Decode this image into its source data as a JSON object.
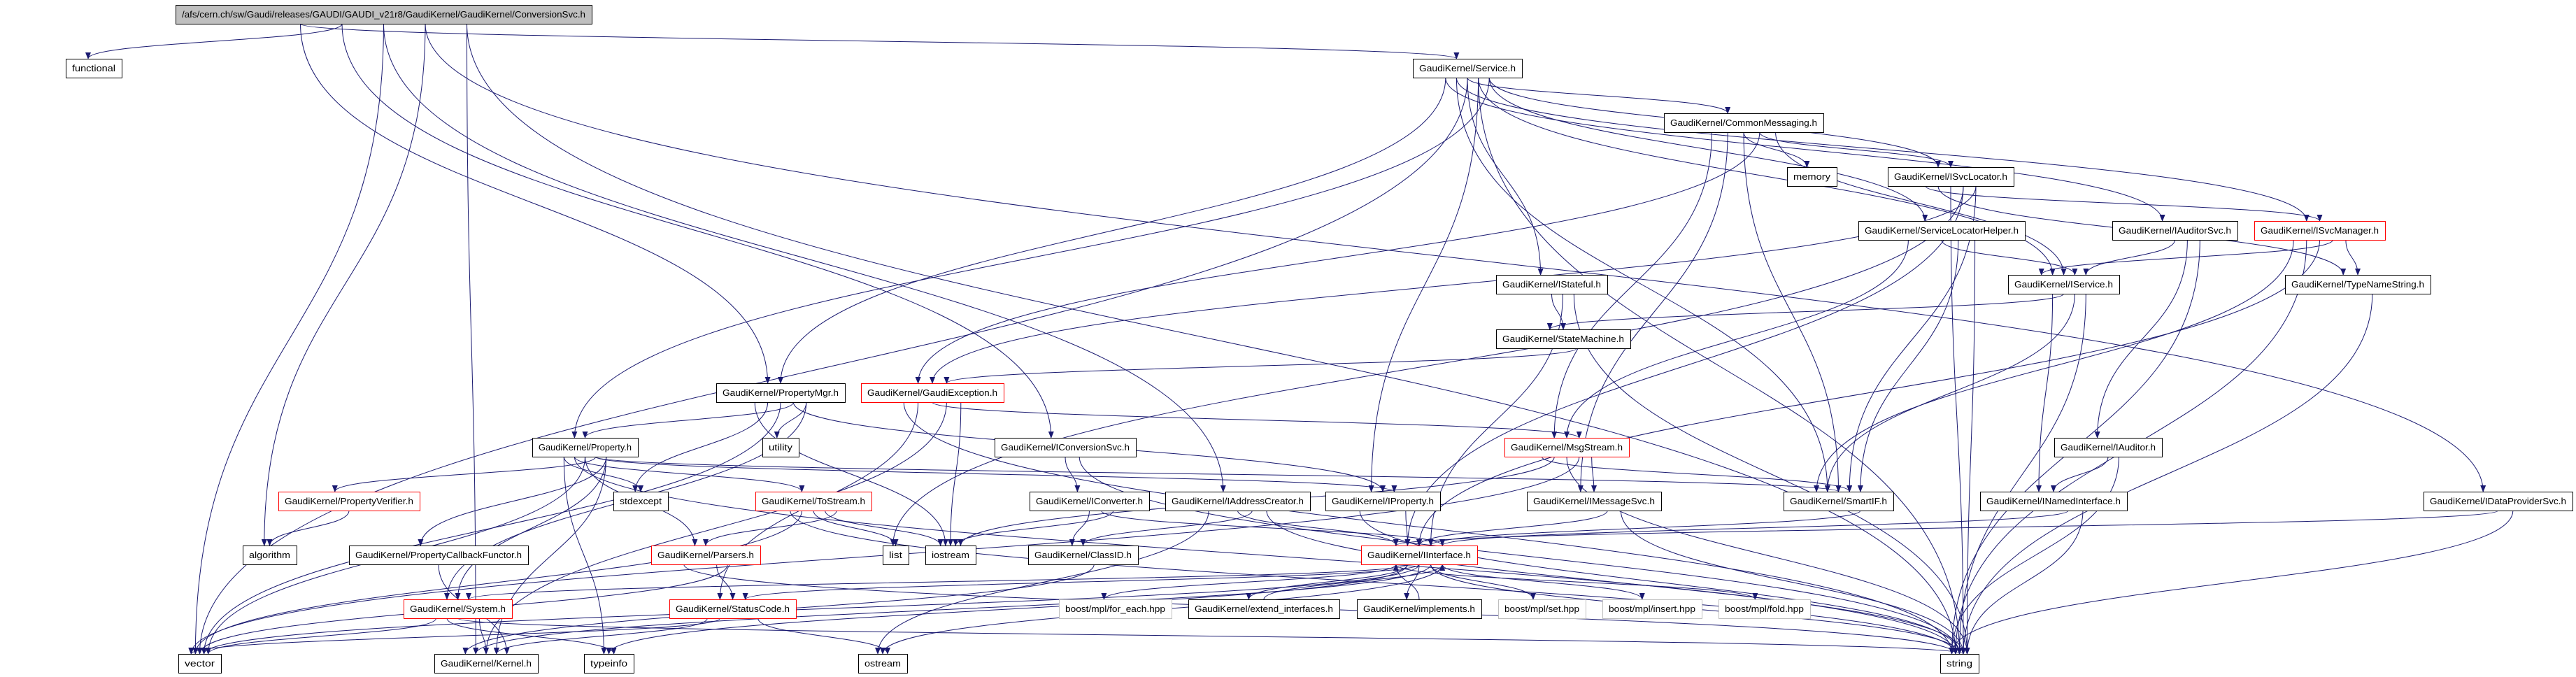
{
  "graph": {
    "colors": {
      "edge": "#191970",
      "root_fill": "#bfbfbf",
      "truncated_border": "#ff0000",
      "external_border": "#bfbfbf",
      "border": "#000000"
    },
    "nodes": [
      {
        "id": "root",
        "label": "/afs/cern.ch/sw/Gaudi/releases/GAUDI/GAUDI_v21r8/GaudiKernel/GaudiKernel/ConversionSvc.h",
        "style": "root"
      },
      {
        "id": "functional",
        "label": "functional",
        "style": "normal"
      },
      {
        "id": "service",
        "label": "GaudiKernel/Service.h",
        "style": "normal"
      },
      {
        "id": "commonmsg",
        "label": "GaudiKernel/CommonMessaging.h",
        "style": "normal"
      },
      {
        "id": "memory",
        "label": "memory",
        "style": "normal"
      },
      {
        "id": "isvclocator",
        "label": "GaudiKernel/ISvcLocator.h",
        "style": "normal"
      },
      {
        "id": "servicelocatorhelper",
        "label": "GaudiKernel/ServiceLocatorHelper.h",
        "style": "normal"
      },
      {
        "id": "iauditorsvc",
        "label": "GaudiKernel/IAuditorSvc.h",
        "style": "normal"
      },
      {
        "id": "isvcmanager",
        "label": "GaudiKernel/ISvcManager.h",
        "style": "truncated"
      },
      {
        "id": "istateful",
        "label": "GaudiKernel/IStateful.h",
        "style": "normal"
      },
      {
        "id": "iservice",
        "label": "GaudiKernel/IService.h",
        "style": "normal"
      },
      {
        "id": "typenamestring",
        "label": "GaudiKernel/TypeNameString.h",
        "style": "normal"
      },
      {
        "id": "statemachine",
        "label": "GaudiKernel/StateMachine.h",
        "style": "normal"
      },
      {
        "id": "propertymgr",
        "label": "GaudiKernel/PropertyMgr.h",
        "style": "normal"
      },
      {
        "id": "gaudiexception",
        "label": "GaudiKernel/GaudiException.h",
        "style": "truncated"
      },
      {
        "id": "utility",
        "label": "utility",
        "style": "normal"
      },
      {
        "id": "property",
        "label": "GaudiKernel/Property.h",
        "style": "normal"
      },
      {
        "id": "iconversionsvc",
        "label": "GaudiKernel/IConversionSvc.h",
        "style": "normal"
      },
      {
        "id": "msgstream",
        "label": "GaudiKernel/MsgStream.h",
        "style": "truncated"
      },
      {
        "id": "iauditor",
        "label": "GaudiKernel/IAuditor.h",
        "style": "normal"
      },
      {
        "id": "propertyverifier",
        "label": "GaudiKernel/PropertyVerifier.h",
        "style": "truncated"
      },
      {
        "id": "stdexcept",
        "label": "stdexcept",
        "style": "normal"
      },
      {
        "id": "tostream",
        "label": "GaudiKernel/ToStream.h",
        "style": "truncated"
      },
      {
        "id": "iconverter",
        "label": "GaudiKernel/IConverter.h",
        "style": "normal"
      },
      {
        "id": "iaddresscreator",
        "label": "GaudiKernel/IAddressCreator.h",
        "style": "normal"
      },
      {
        "id": "iproperty",
        "label": "GaudiKernel/IProperty.h",
        "style": "normal"
      },
      {
        "id": "imessagesvc",
        "label": "GaudiKernel/IMessageSvc.h",
        "style": "normal"
      },
      {
        "id": "smartif",
        "label": "GaudiKernel/SmartIF.h",
        "style": "normal"
      },
      {
        "id": "inamedinterface",
        "label": "GaudiKernel/INamedInterface.h",
        "style": "normal"
      },
      {
        "id": "idataprovidersvc",
        "label": "GaudiKernel/IDataProviderSvc.h",
        "style": "normal"
      },
      {
        "id": "algorithm",
        "label": "algorithm",
        "style": "normal"
      },
      {
        "id": "propertycallbackfunctor",
        "label": "GaudiKernel/PropertyCallbackFunctor.h",
        "style": "normal"
      },
      {
        "id": "parsers",
        "label": "GaudiKernel/Parsers.h",
        "style": "truncated"
      },
      {
        "id": "list",
        "label": "list",
        "style": "normal"
      },
      {
        "id": "iostream",
        "label": "iostream",
        "style": "normal"
      },
      {
        "id": "classid",
        "label": "GaudiKernel/ClassID.h",
        "style": "normal"
      },
      {
        "id": "iinterface",
        "label": "GaudiKernel/IInterface.h",
        "style": "truncated"
      },
      {
        "id": "system",
        "label": "GaudiKernel/System.h",
        "style": "truncated"
      },
      {
        "id": "statuscode",
        "label": "GaudiKernel/StatusCode.h",
        "style": "truncated"
      },
      {
        "id": "foreach",
        "label": "boost/mpl/for_each.hpp",
        "style": "external"
      },
      {
        "id": "extend",
        "label": "GaudiKernel/extend_interfaces.h",
        "style": "normal"
      },
      {
        "id": "implements",
        "label": "GaudiKernel/implements.h",
        "style": "normal"
      },
      {
        "id": "set",
        "label": "boost/mpl/set.hpp",
        "style": "external"
      },
      {
        "id": "insert",
        "label": "boost/mpl/insert.hpp",
        "style": "external"
      },
      {
        "id": "fold",
        "label": "boost/mpl/fold.hpp",
        "style": "external"
      },
      {
        "id": "vector",
        "label": "vector",
        "style": "normal"
      },
      {
        "id": "kernel",
        "label": "GaudiKernel/Kernel.h",
        "style": "normal"
      },
      {
        "id": "typeinfo",
        "label": "typeinfo",
        "style": "normal"
      },
      {
        "id": "ostream",
        "label": "ostream",
        "style": "normal"
      },
      {
        "id": "string",
        "label": "string",
        "style": "normal"
      }
    ],
    "edges": [
      [
        "root",
        "functional"
      ],
      [
        "root",
        "vector"
      ],
      [
        "root",
        "algorithm"
      ],
      [
        "root",
        "kernel"
      ],
      [
        "root",
        "service"
      ],
      [
        "root",
        "iconversionsvc"
      ],
      [
        "root",
        "iaddresscreator"
      ],
      [
        "root",
        "idataprovidersvc"
      ],
      [
        "root",
        "string"
      ],
      [
        "root",
        "propertymgr"
      ],
      [
        "service",
        "commonmsg"
      ],
      [
        "service",
        "iservice"
      ],
      [
        "service",
        "isvclocator"
      ],
      [
        "service",
        "iauditorsvc"
      ],
      [
        "service",
        "isvcmanager"
      ],
      [
        "service",
        "istateful"
      ],
      [
        "service",
        "iproperty"
      ],
      [
        "service",
        "property"
      ],
      [
        "service",
        "propertymgr"
      ],
      [
        "service",
        "smartif"
      ],
      [
        "service",
        "vector"
      ],
      [
        "service",
        "string"
      ],
      [
        "service",
        "servicelocatorhelper"
      ],
      [
        "commonmsg",
        "memory"
      ],
      [
        "commonmsg",
        "isvclocator"
      ],
      [
        "commonmsg",
        "iservice"
      ],
      [
        "commonmsg",
        "msgstream"
      ],
      [
        "commonmsg",
        "imessagesvc"
      ],
      [
        "commonmsg",
        "smartif"
      ],
      [
        "commonmsg",
        "gaudiexception"
      ],
      [
        "isvclocator",
        "iinterface"
      ],
      [
        "isvclocator",
        "smartif"
      ],
      [
        "isvclocator",
        "isvcmanager"
      ],
      [
        "isvclocator",
        "typenamestring"
      ],
      [
        "isvclocator",
        "string"
      ],
      [
        "isvclocator",
        "list"
      ],
      [
        "isvclocator",
        "gaudiexception"
      ],
      [
        "servicelocatorhelper",
        "iservice"
      ],
      [
        "servicelocatorhelper",
        "smartif"
      ],
      [
        "servicelocatorhelper",
        "string"
      ],
      [
        "servicelocatorhelper",
        "msgstream"
      ],
      [
        "iauditorsvc",
        "iservice"
      ],
      [
        "iauditorsvc",
        "iauditor"
      ],
      [
        "iauditorsvc",
        "string"
      ],
      [
        "isvcmanager",
        "iservice"
      ],
      [
        "isvcmanager",
        "typenamestring"
      ],
      [
        "isvcmanager",
        "smartif"
      ],
      [
        "isvcmanager",
        "string"
      ],
      [
        "isvcmanager",
        "iinterface"
      ],
      [
        "iservice",
        "inamedinterface"
      ],
      [
        "iservice",
        "statemachine"
      ],
      [
        "iservice",
        "smartif"
      ],
      [
        "iservice",
        "string"
      ],
      [
        "typenamestring",
        "string"
      ],
      [
        "istateful",
        "statemachine"
      ],
      [
        "istateful",
        "iinterface"
      ],
      [
        "istateful",
        "string"
      ],
      [
        "statemachine",
        "gaudiexception"
      ],
      [
        "propertymgr",
        "property"
      ],
      [
        "propertymgr",
        "utility"
      ],
      [
        "propertymgr",
        "iostream"
      ],
      [
        "propertymgr",
        "stdexcept"
      ],
      [
        "propertymgr",
        "vector"
      ],
      [
        "propertymgr",
        "iproperty"
      ],
      [
        "propertymgr",
        "system"
      ],
      [
        "gaudiexception",
        "iostream"
      ],
      [
        "gaudiexception",
        "string"
      ],
      [
        "gaudiexception",
        "statuscode"
      ],
      [
        "gaudiexception",
        "msgstream"
      ],
      [
        "gaudiexception",
        "kernel"
      ],
      [
        "property",
        "propertyverifier"
      ],
      [
        "property",
        "propertycallbackfunctor"
      ],
      [
        "property",
        "stdexcept"
      ],
      [
        "property",
        "tostream"
      ],
      [
        "property",
        "parsers"
      ],
      [
        "property",
        "iproperty"
      ],
      [
        "property",
        "kernel"
      ],
      [
        "property",
        "typeinfo"
      ],
      [
        "property",
        "string"
      ],
      [
        "property",
        "vector"
      ],
      [
        "property",
        "smartif"
      ],
      [
        "property",
        "system"
      ],
      [
        "iconversionsvc",
        "iconverter"
      ],
      [
        "iconversionsvc",
        "string"
      ],
      [
        "iconverter",
        "classid"
      ],
      [
        "iconverter",
        "iinterface"
      ],
      [
        "iconverter",
        "iostream"
      ],
      [
        "iaddresscreator",
        "iinterface"
      ],
      [
        "iaddresscreator",
        "classid"
      ],
      [
        "iaddresscreator",
        "string"
      ],
      [
        "iaddresscreator",
        "ostream"
      ],
      [
        "msgstream",
        "imessagesvc"
      ],
      [
        "msgstream",
        "smartif"
      ],
      [
        "msgstream",
        "iostream"
      ],
      [
        "msgstream",
        "string"
      ],
      [
        "msgstream",
        "vector"
      ],
      [
        "iauditor",
        "inamedinterface"
      ],
      [
        "iauditor",
        "string"
      ],
      [
        "propertyverifier",
        "algorithm"
      ],
      [
        "propertycallbackfunctor",
        "kernel"
      ],
      [
        "tostream",
        "list"
      ],
      [
        "tostream",
        "iostream"
      ],
      [
        "tostream",
        "parsers"
      ],
      [
        "tostream",
        "string"
      ],
      [
        "tostream",
        "vector"
      ],
      [
        "iproperty",
        "iinterface"
      ],
      [
        "iproperty",
        "string"
      ],
      [
        "imessagesvc",
        "iinterface"
      ],
      [
        "imessagesvc",
        "string"
      ],
      [
        "smartif",
        "iinterface"
      ],
      [
        "inamedinterface",
        "iinterface"
      ],
      [
        "inamedinterface",
        "string"
      ],
      [
        "idataprovidersvc",
        "iinterface"
      ],
      [
        "idataprovidersvc",
        "string"
      ],
      [
        "parsers",
        "statuscode"
      ],
      [
        "parsers",
        "vector"
      ],
      [
        "parsers",
        "string"
      ],
      [
        "classid",
        "kernel"
      ],
      [
        "iinterface",
        "system"
      ],
      [
        "iinterface",
        "statuscode"
      ],
      [
        "iinterface",
        "kernel"
      ],
      [
        "iinterface",
        "ostream"
      ],
      [
        "iinterface",
        "foreach"
      ],
      [
        "iinterface",
        "extend"
      ],
      [
        "iinterface",
        "implements"
      ],
      [
        "iinterface",
        "set"
      ],
      [
        "iinterface",
        "insert"
      ],
      [
        "iinterface",
        "fold"
      ],
      [
        "iinterface",
        "typeinfo"
      ],
      [
        "iinterface",
        "vector"
      ],
      [
        "iinterface",
        "string"
      ],
      [
        "extend",
        "iinterface"
      ],
      [
        "implements",
        "iinterface"
      ],
      [
        "system",
        "kernel"
      ],
      [
        "system",
        "vector"
      ],
      [
        "system",
        "typeinfo"
      ],
      [
        "system",
        "string"
      ],
      [
        "statuscode",
        "ostream"
      ],
      [
        "statuscode",
        "kernel"
      ],
      [
        "statuscode",
        "vector"
      ]
    ]
  }
}
